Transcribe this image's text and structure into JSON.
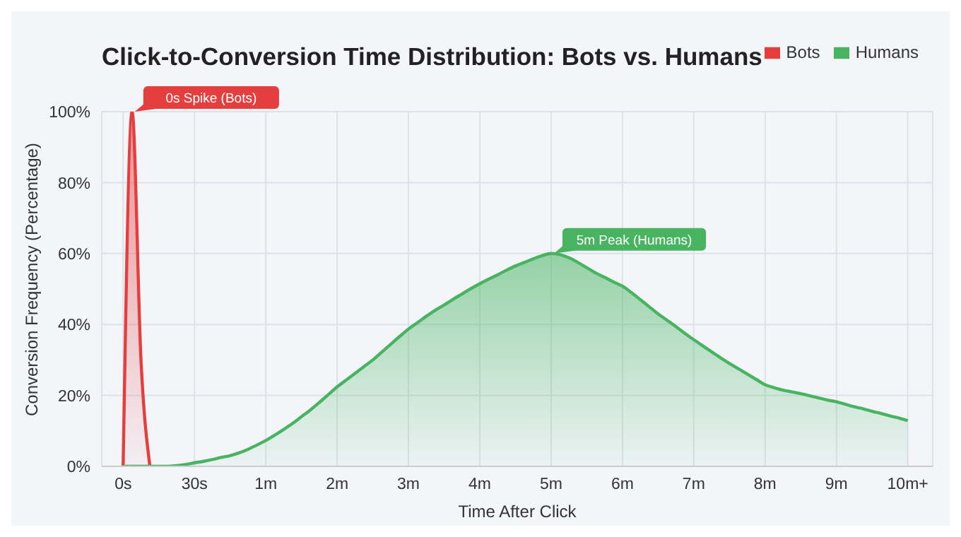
{
  "chart_data": {
    "type": "area",
    "title": "Click-to-Conversion Time Distribution: Bots vs. Humans",
    "xlabel": "Time After Click",
    "ylabel": "Conversion Frequency (Percentage)",
    "categories": [
      "0s",
      null,
      null,
      null,
      null,
      null,
      null,
      null,
      "30s",
      null,
      null,
      null,
      null,
      null,
      null,
      null,
      "1m",
      null,
      null,
      null,
      null,
      null,
      null,
      null,
      "2m",
      null,
      null,
      null,
      null,
      null,
      null,
      null,
      "3m",
      null,
      null,
      null,
      null,
      null,
      null,
      null,
      "4m",
      null,
      null,
      null,
      null,
      null,
      null,
      null,
      "5m",
      null,
      null,
      null,
      null,
      null,
      null,
      null,
      "6m",
      null,
      null,
      null,
      null,
      null,
      null,
      null,
      "7m",
      null,
      null,
      null,
      null,
      null,
      null,
      null,
      "8m",
      null,
      null,
      null,
      null,
      null,
      null,
      null,
      "9m",
      null,
      null,
      null,
      null,
      null,
      null,
      null,
      "10m+"
    ],
    "ylim": [
      0,
      100
    ],
    "yticks": [
      {
        "value": 0,
        "label": "0%"
      },
      {
        "value": 20,
        "label": "20%"
      },
      {
        "value": 40,
        "label": "40%"
      },
      {
        "value": 60,
        "label": "60%"
      },
      {
        "value": 80,
        "label": "80%"
      },
      {
        "value": 100,
        "label": "100%"
      }
    ],
    "series": [
      {
        "name": "Bots",
        "color": "#e53e3e",
        "values": [
          0,
          100,
          30,
          0,
          null,
          null,
          null,
          null,
          null,
          null,
          null,
          null,
          null,
          null,
          null,
          null,
          null,
          null,
          null,
          null,
          null,
          null,
          null,
          null,
          null,
          null,
          null,
          null,
          null,
          null,
          null,
          null,
          null,
          null,
          null,
          null,
          null,
          null,
          null,
          null,
          null,
          null,
          null,
          null,
          null,
          null,
          null,
          null,
          null,
          null,
          null,
          null,
          null,
          null,
          null,
          null,
          null,
          null,
          null,
          null,
          null,
          null,
          null,
          null,
          null,
          null,
          null,
          null,
          null,
          null,
          null,
          null,
          null,
          null,
          null,
          null,
          null,
          null,
          null,
          null,
          null,
          null,
          null,
          null,
          null,
          null,
          null,
          null,
          null
        ]
      },
      {
        "name": "Humans",
        "color": "#48b461",
        "values": [
          0,
          0,
          0,
          0,
          0,
          0,
          0.2,
          0.5,
          1,
          1.4,
          1.9,
          2.5,
          3,
          3.8,
          4.8,
          6,
          7.3,
          8.8,
          10.4,
          12.1,
          14,
          15.9,
          18,
          20.2,
          22.4,
          24.3,
          26.2,
          28.1,
          30,
          32.2,
          34.4,
          36.6,
          38.7,
          40.5,
          42.3,
          44,
          45.5,
          47.1,
          48.6,
          50.1,
          51.5,
          52.8,
          54,
          55.3,
          56.5,
          57.5,
          58.5,
          59.4,
          60,
          59.7,
          58.8,
          57.5,
          56,
          54.5,
          53.3,
          52,
          50.8,
          49,
          47,
          45,
          43,
          41.2,
          39.4,
          37.5,
          35.7,
          34,
          32.3,
          30.6,
          29,
          27.5,
          26,
          24.5,
          23,
          22.2,
          21.5,
          21,
          20.5,
          19.9,
          19.3,
          18.7,
          18.2,
          17.5,
          16.8,
          16.2,
          15.5,
          14.9,
          14.2,
          13.6,
          12.9
        ]
      }
    ],
    "annotations": [
      "0s Spike (Bots)",
      {
        "text": "5m Peak (Humans)",
        "x": "5m",
        "y": 60
      }
    ],
    "grid": true,
    "legend": "top right",
    "marker": "none",
    "line_style": "solid"
  }
}
